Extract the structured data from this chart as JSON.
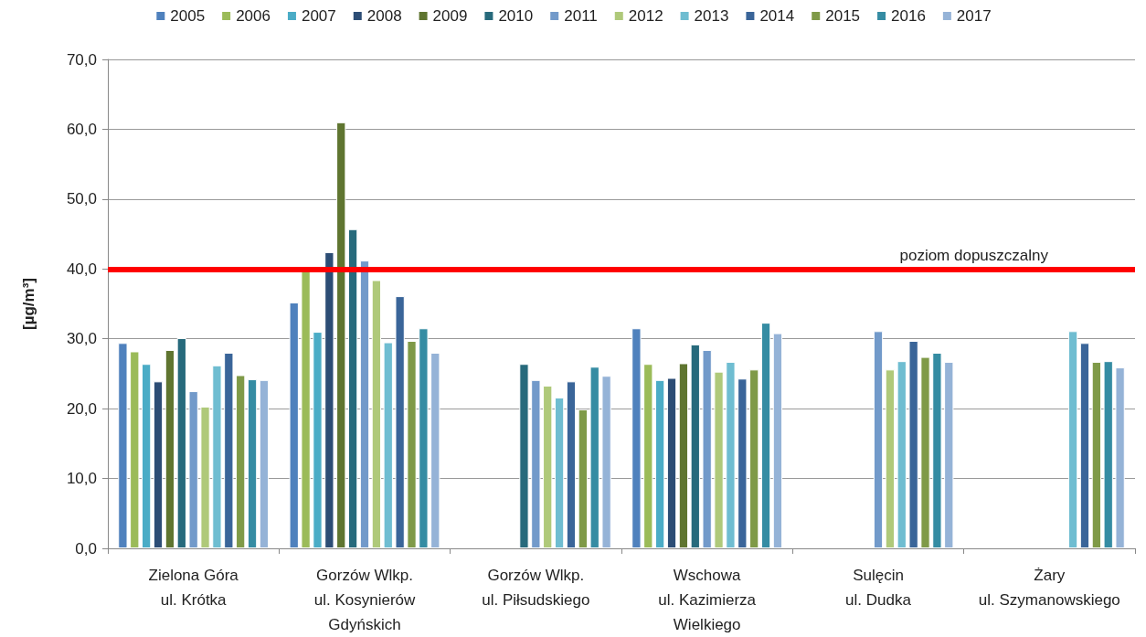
{
  "chart_data": {
    "type": "bar",
    "ylabel": "[µg/m³]",
    "categories": [
      "Zielona Góra\nul. Krótka",
      "Gorzów Wlkp.\nul. Kosynierów\nGdyńskich",
      "Gorzów Wlkp.\nul. Piłsudskiego",
      "Wschowa\nul. Kazimierza\nWielkiego",
      "Sulęcin\nul. Dudka",
      "Żary\nul. Szymanowskiego"
    ],
    "series": [
      {
        "name": "2005",
        "color": "#4f81bd",
        "values": [
          29.4,
          35.2,
          null,
          31.5,
          null,
          null
        ]
      },
      {
        "name": "2006",
        "color": "#9bbb59",
        "values": [
          28.2,
          40.0,
          null,
          26.4,
          null,
          null
        ]
      },
      {
        "name": "2007",
        "color": "#4bacc6",
        "values": [
          26.4,
          31.0,
          null,
          24.1,
          null,
          null
        ]
      },
      {
        "name": "2008",
        "color": "#2c4d75",
        "values": [
          23.9,
          42.4,
          null,
          24.4,
          null,
          null
        ]
      },
      {
        "name": "2009",
        "color": "#5f7530",
        "values": [
          28.4,
          61.0,
          null,
          26.5,
          null,
          null
        ]
      },
      {
        "name": "2010",
        "color": "#276a7c",
        "values": [
          30.1,
          45.7,
          26.4,
          29.2,
          null,
          null
        ]
      },
      {
        "name": "2011",
        "color": "#729aca",
        "values": [
          22.5,
          41.2,
          24.1,
          28.4,
          31.1,
          null
        ]
      },
      {
        "name": "2012",
        "color": "#afc97a",
        "values": [
          20.3,
          38.4,
          23.3,
          25.3,
          25.6,
          null
        ]
      },
      {
        "name": "2013",
        "color": "#6fbdd1",
        "values": [
          26.2,
          29.5,
          21.6,
          26.7,
          26.8,
          31.1
        ]
      },
      {
        "name": "2014",
        "color": "#3a6599",
        "values": [
          28.0,
          36.1,
          23.9,
          24.3,
          29.7,
          29.4
        ]
      },
      {
        "name": "2015",
        "color": "#7f9a48",
        "values": [
          24.8,
          29.7,
          19.9,
          25.6,
          27.4,
          26.7
        ]
      },
      {
        "name": "2016",
        "color": "#358ca3",
        "values": [
          24.2,
          31.5,
          26.0,
          32.3,
          28.0,
          26.8
        ]
      },
      {
        "name": "2017",
        "color": "#95b3d7",
        "values": [
          24.1,
          28.0,
          24.7,
          30.8,
          26.7,
          25.9
        ]
      }
    ],
    "ylim": [
      0,
      70
    ],
    "yticks": [
      {
        "value": 0,
        "label": "0,0"
      },
      {
        "value": 10,
        "label": "10,0"
      },
      {
        "value": 20,
        "label": "20,0"
      },
      {
        "value": 30,
        "label": "30,0"
      },
      {
        "value": 40,
        "label": "40,0"
      },
      {
        "value": 50,
        "label": "50,0"
      },
      {
        "value": 60,
        "label": "60,0"
      },
      {
        "value": 70,
        "label": "70,0"
      }
    ],
    "ref_lines": [
      {
        "axis": "y",
        "value": 40,
        "label": "poziom dopuszczalny",
        "color": "#ff0000"
      }
    ],
    "grid": "y",
    "legend": "top"
  }
}
